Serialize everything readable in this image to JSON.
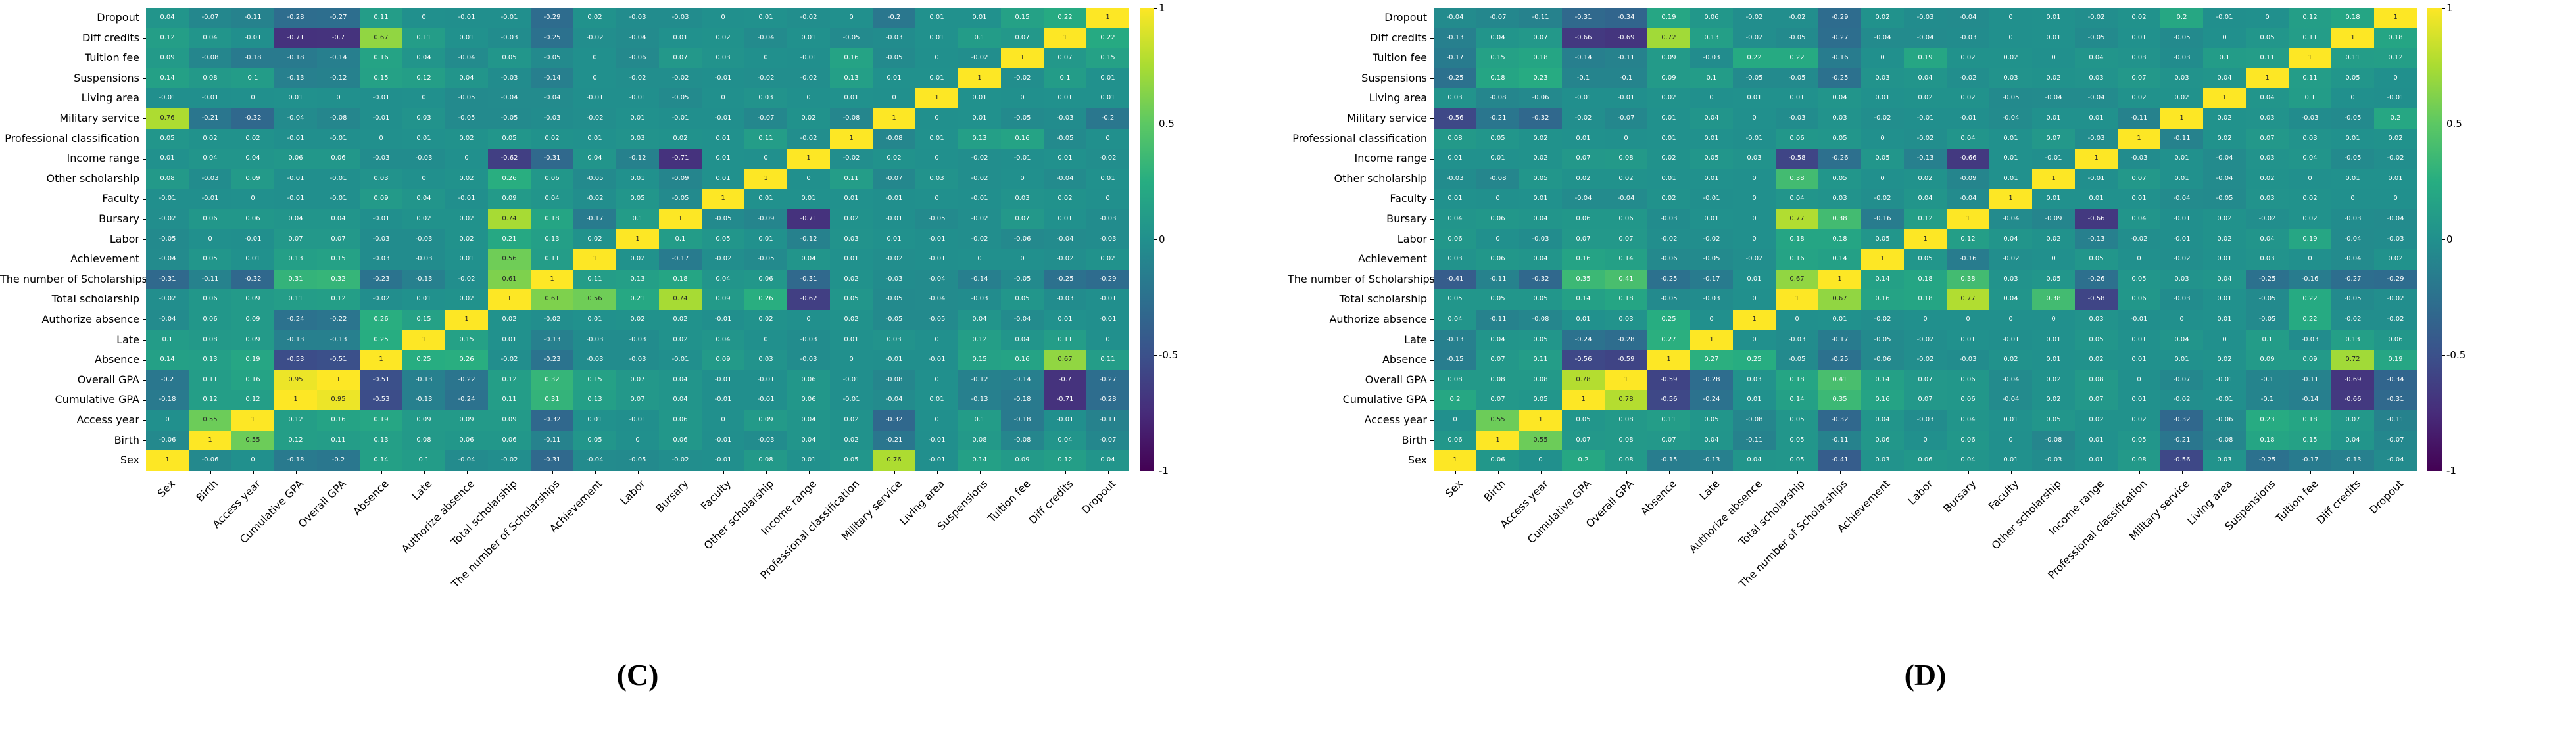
{
  "figure": {
    "background": "#ffffff",
    "colorbar": {
      "vmin": -1,
      "vmax": 1,
      "tick_values": [
        1,
        0.5,
        0,
        -0.5,
        -1
      ],
      "tick_labels": [
        "1",
        "0.5",
        "0",
        "-0.5",
        "-1"
      ],
      "colormap": "viridis",
      "colormap_stops": [
        [
          0,
          "#440154"
        ],
        [
          0.125,
          "#472c7a"
        ],
        [
          0.25,
          "#3b518b"
        ],
        [
          0.375,
          "#2c718e"
        ],
        [
          0.5,
          "#21908d"
        ],
        [
          0.625,
          "#27ad81"
        ],
        [
          0.75,
          "#5cc863"
        ],
        [
          0.875,
          "#aadc32"
        ],
        [
          1,
          "#fde725"
        ]
      ]
    }
  },
  "chart_data": [
    {
      "type": "heatmap",
      "caption": "(C)",
      "title": "",
      "vmin": -1,
      "vmax": 1,
      "symmetric": true,
      "diagonal_value": 1,
      "x_label_order": "left-to-right as listed in variables",
      "y_label_order": "top-to-bottom is reverse of variables",
      "variables": [
        "Sex",
        "Birth",
        "Access year",
        "Cumulative GPA",
        "Overall GPA",
        "Absence",
        "Late",
        "Authorize absence",
        "Total scholarship",
        "The number of Scholarships",
        "Achievement",
        "Labor",
        "Bursary",
        "Faculty",
        "Other scholarship",
        "Income range",
        "Professional classification",
        "Military service",
        "Living area",
        "Suspensions",
        "Tuition fee",
        "Diff credits",
        "Dropout"
      ],
      "lower_triangle": [
        [
          -0.06
        ],
        [
          0,
          0.55
        ],
        [
          -0.18,
          0.12,
          0.12
        ],
        [
          -0.2,
          0.11,
          0.16,
          0.95
        ],
        [
          0.14,
          0.13,
          0.19,
          -0.53,
          -0.51
        ],
        [
          0.1,
          0.08,
          0.09,
          -0.13,
          -0.13,
          0.25
        ],
        [
          -0.04,
          0.06,
          0.09,
          -0.24,
          -0.22,
          0.26,
          0.15
        ],
        [
          -0.02,
          0.06,
          0.09,
          0.11,
          0.12,
          -0.02,
          0.01,
          0.02
        ],
        [
          -0.31,
          -0.11,
          -0.32,
          0.31,
          0.32,
          -0.23,
          -0.13,
          -0.02,
          0.61
        ],
        [
          -0.04,
          0.05,
          0.01,
          0.13,
          0.15,
          -0.03,
          -0.03,
          0.01,
          0.56,
          0.11
        ],
        [
          -0.05,
          0,
          -0.01,
          0.07,
          0.07,
          -0.03,
          -0.03,
          0.02,
          0.21,
          0.13,
          0.02
        ],
        [
          -0.02,
          0.06,
          0.06,
          0.04,
          0.04,
          -0.01,
          0.02,
          0.02,
          0.74,
          0.18,
          -0.17,
          0.1
        ],
        [
          -0.01,
          -0.01,
          0,
          -0.01,
          -0.01,
          0.09,
          0.04,
          -0.01,
          0.09,
          0.04,
          -0.02,
          0.05,
          -0.05
        ],
        [
          0.08,
          -0.03,
          0.09,
          -0.01,
          -0.01,
          0.03,
          0,
          0.02,
          0.26,
          0.06,
          -0.05,
          0.01,
          -0.09,
          0.01
        ],
        [
          0.01,
          0.04,
          0.04,
          0.06,
          0.06,
          -0.03,
          -0.03,
          0,
          -0.62,
          -0.31,
          0.04,
          -0.12,
          -0.71,
          0.01,
          0
        ],
        [
          0.05,
          0.02,
          0.02,
          -0.01,
          -0.01,
          0,
          0.01,
          0.02,
          0.05,
          0.02,
          0.01,
          0.03,
          0.02,
          0.01,
          0.11,
          -0.02
        ],
        [
          0.76,
          -0.21,
          -0.32,
          -0.04,
          -0.08,
          -0.01,
          0.03,
          -0.05,
          -0.05,
          -0.03,
          -0.02,
          0.01,
          -0.01,
          -0.01,
          -0.07,
          0.02,
          -0.08
        ],
        [
          -0.01,
          -0.01,
          0,
          0.01,
          0,
          -0.01,
          0,
          -0.05,
          -0.04,
          -0.04,
          -0.01,
          -0.01,
          -0.05,
          0,
          0.03,
          0,
          0.01,
          0
        ],
        [
          0.14,
          0.08,
          0.1,
          -0.13,
          -0.12,
          0.15,
          0.12,
          0.04,
          -0.03,
          -0.14,
          0,
          -0.02,
          -0.02,
          -0.01,
          -0.02,
          -0.02,
          0.13,
          0.01,
          0.01
        ],
        [
          0.09,
          -0.08,
          -0.18,
          -0.18,
          -0.14,
          0.16,
          0.04,
          -0.04,
          0.05,
          -0.05,
          0,
          -0.06,
          0.07,
          0.03,
          0,
          -0.01,
          0.16,
          -0.05,
          0,
          -0.02
        ],
        [
          0.12,
          0.04,
          -0.01,
          -0.71,
          -0.7,
          0.67,
          0.11,
          0.01,
          -0.03,
          -0.25,
          -0.02,
          -0.04,
          0.01,
          0.02,
          -0.04,
          0.01,
          -0.05,
          -0.03,
          0.01,
          0.1,
          0.07
        ],
        [
          0.04,
          -0.07,
          -0.11,
          -0.28,
          -0.27,
          0.11,
          0,
          -0.01,
          -0.01,
          -0.29,
          0.02,
          -0.03,
          -0.03,
          0,
          0.01,
          -0.02,
          0,
          -0.2,
          0.01,
          0.01,
          0.15,
          0.22
        ]
      ]
    },
    {
      "type": "heatmap",
      "caption": "(D)",
      "title": "",
      "vmin": -1,
      "vmax": 1,
      "symmetric": true,
      "diagonal_value": 1,
      "x_label_order": "left-to-right as listed in variables",
      "y_label_order": "top-to-bottom is reverse of variables",
      "variables": [
        "Sex",
        "Birth",
        "Access year",
        "Cumulative GPA",
        "Overall GPA",
        "Absence",
        "Late",
        "Authorize absence",
        "Total scholarship",
        "The number of Scholarships",
        "Achievement",
        "Labor",
        "Bursary",
        "Faculty",
        "Other scholarship",
        "Income range",
        "Professional classification",
        "Military service",
        "Living area",
        "Suspensions",
        "Tuition fee",
        "Diff credits",
        "Dropout"
      ],
      "lower_triangle": [
        [
          0.06
        ],
        [
          0,
          0.55
        ],
        [
          0.2,
          0.07,
          0.05
        ],
        [
          0.08,
          0.08,
          0.08,
          0.78
        ],
        [
          -0.15,
          0.07,
          0.11,
          -0.56,
          -0.59
        ],
        [
          -0.13,
          0.04,
          0.05,
          -0.24,
          -0.28,
          0.27
        ],
        [
          0.04,
          -0.11,
          -0.08,
          0.01,
          0.03,
          0.25,
          0
        ],
        [
          0.05,
          0.05,
          0.05,
          0.14,
          0.18,
          -0.05,
          -0.03,
          0
        ],
        [
          -0.41,
          -0.11,
          -0.32,
          0.35,
          0.41,
          -0.25,
          -0.17,
          0.01,
          0.67
        ],
        [
          0.03,
          0.06,
          0.04,
          0.16,
          0.14,
          -0.06,
          -0.05,
          -0.02,
          0.16,
          0.14
        ],
        [
          0.06,
          0,
          -0.03,
          0.07,
          0.07,
          -0.02,
          -0.02,
          0,
          0.18,
          0.18,
          0.05
        ],
        [
          0.04,
          0.06,
          0.04,
          0.06,
          0.06,
          -0.03,
          0.01,
          0,
          0.77,
          0.38,
          -0.16,
          0.12
        ],
        [
          0.01,
          0,
          0.01,
          -0.04,
          -0.04,
          0.02,
          -0.01,
          0,
          0.04,
          0.03,
          -0.02,
          0.04,
          -0.04
        ],
        [
          -0.03,
          -0.08,
          0.05,
          0.02,
          0.02,
          0.01,
          0.01,
          0,
          0.38,
          0.05,
          0,
          0.02,
          -0.09,
          0.01
        ],
        [
          0.01,
          0.01,
          0.02,
          0.07,
          0.08,
          0.02,
          0.05,
          0.03,
          -0.58,
          -0.26,
          0.05,
          -0.13,
          -0.66,
          0.01,
          -0.01
        ],
        [
          0.08,
          0.05,
          0.02,
          0.01,
          0,
          0.01,
          0.01,
          -0.01,
          0.06,
          0.05,
          0,
          -0.02,
          0.04,
          0.01,
          0.07,
          -0.03
        ],
        [
          -0.56,
          -0.21,
          -0.32,
          -0.02,
          -0.07,
          0.01,
          0.04,
          0,
          -0.03,
          0.03,
          -0.02,
          -0.01,
          -0.01,
          -0.04,
          0.01,
          0.01,
          -0.11
        ],
        [
          0.03,
          -0.08,
          -0.06,
          -0.01,
          -0.01,
          0.02,
          0,
          0.01,
          0.01,
          0.04,
          0.01,
          0.02,
          0.02,
          -0.05,
          -0.04,
          -0.04,
          0.02,
          0.02
        ],
        [
          -0.25,
          0.18,
          0.23,
          -0.1,
          -0.1,
          0.09,
          0.1,
          -0.05,
          -0.05,
          -0.25,
          0.03,
          0.04,
          -0.02,
          0.03,
          0.02,
          0.03,
          0.07,
          0.03,
          0.04
        ],
        [
          -0.17,
          0.15,
          0.18,
          -0.14,
          -0.11,
          0.09,
          -0.03,
          0.22,
          0.22,
          -0.16,
          0,
          0.19,
          0.02,
          0.02,
          0,
          0.04,
          0.03,
          -0.03,
          0.1,
          0.11
        ],
        [
          -0.13,
          0.04,
          0.07,
          -0.66,
          -0.69,
          0.72,
          0.13,
          -0.02,
          -0.05,
          -0.27,
          -0.04,
          -0.04,
          -0.03,
          0,
          0.01,
          -0.05,
          0.01,
          -0.05,
          0,
          0.05,
          0.11
        ],
        [
          -0.04,
          -0.07,
          -0.11,
          -0.31,
          -0.34,
          0.19,
          0.06,
          -0.02,
          -0.02,
          -0.29,
          0.02,
          -0.03,
          -0.04,
          0,
          0.01,
          -0.02,
          0.02,
          0.2,
          -0.01,
          0,
          0.12,
          0.18
        ]
      ]
    }
  ]
}
